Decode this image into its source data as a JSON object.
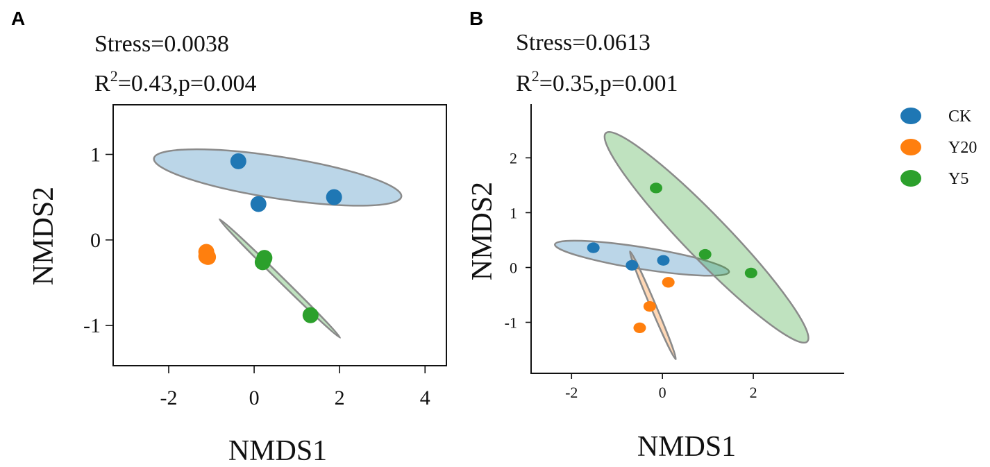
{
  "colors": {
    "CK": "#1f77b4",
    "Y20": "#ff7f0e",
    "Y5": "#2ca02c",
    "ellipse_stroke": "#8a8a8a"
  },
  "legend": [
    {
      "group": "CK",
      "label": "CK"
    },
    {
      "group": "Y20",
      "label": "Y20"
    },
    {
      "group": "Y5",
      "label": "Y5"
    }
  ],
  "chart_data": [
    {
      "type": "scatter",
      "panel": "A",
      "stress_text": "Stress=0.0038",
      "r2_prefix": "R",
      "r2_sup": "2",
      "r2_rest": "=0.43,p=0.004",
      "xlabel": "NMDS1",
      "ylabel": "NMDS2",
      "xlim": [
        -3.3,
        4.5
      ],
      "ylim": [
        -1.47,
        1.58
      ],
      "xticks": [
        -2,
        0,
        2,
        4
      ],
      "xtick_labels": [
        "-2",
        "0",
        "2",
        "4"
      ],
      "yticks": [
        1,
        0,
        -1
      ],
      "ytick_labels": [
        "1",
        "0",
        "-1"
      ],
      "series": [
        {
          "name": "CK",
          "points": [
            [
              -0.37,
              0.92
            ],
            [
              0.1,
              0.42
            ],
            [
              1.87,
              0.5
            ]
          ]
        },
        {
          "name": "Y20",
          "points": [
            [
              -1.12,
              -0.14
            ],
            [
              -1.12,
              -0.19
            ],
            [
              -1.08,
              -0.2
            ]
          ]
        },
        {
          "name": "Y5",
          "points": [
            [
              0.24,
              -0.21
            ],
            [
              0.2,
              -0.26
            ],
            [
              1.32,
              -0.88
            ]
          ]
        }
      ],
      "ellipses": [
        {
          "group": "CK",
          "center": [
            0.55,
            0.73
          ],
          "semi_axes": [
            2.93,
            0.49
          ],
          "angle_deg": -8.8
        },
        {
          "group": "Y5",
          "center": [
            0.6,
            -0.45
          ],
          "semi_axes": [
            1.98,
            0.06
          ],
          "angle_deg": -44.5
        }
      ]
    },
    {
      "type": "scatter",
      "panel": "B",
      "stress_text": "Stress=0.0613",
      "r2_prefix": "R",
      "r2_sup": "2",
      "r2_rest": "=0.35,p=0.001",
      "xlabel": "NMDS1",
      "ylabel": "NMDS2",
      "xlim": [
        -2.89,
        4.0
      ],
      "ylim": [
        -1.93,
        2.98
      ],
      "xticks": [
        -2,
        0,
        2
      ],
      "xtick_labels": [
        "-2",
        "0",
        "2"
      ],
      "yticks": [
        2,
        1,
        0,
        -1
      ],
      "ytick_labels": [
        "2",
        "1",
        "0",
        "-1"
      ],
      "series": [
        {
          "name": "CK",
          "points": [
            [
              -1.52,
              0.36
            ],
            [
              -0.67,
              0.04
            ],
            [
              0.02,
              0.13
            ]
          ]
        },
        {
          "name": "Y20",
          "points": [
            [
              0.13,
              -0.27
            ],
            [
              -0.28,
              -0.71
            ],
            [
              -0.5,
              -1.1
            ]
          ]
        },
        {
          "name": "Y5",
          "points": [
            [
              -0.14,
              1.45
            ],
            [
              0.94,
              0.24
            ],
            [
              1.95,
              -0.1
            ]
          ]
        }
      ],
      "ellipses": [
        {
          "group": "CK",
          "center": [
            -0.45,
            0.17
          ],
          "semi_axes": [
            1.94,
            0.24
          ],
          "angle_deg": -9
        },
        {
          "group": "Y5",
          "center": [
            0.97,
            0.55
          ],
          "semi_axes": [
            3.19,
            0.48
          ],
          "angle_deg": -46
        },
        {
          "group": "Y20",
          "center": [
            -0.21,
            -0.69
          ],
          "semi_axes": [
            1.29,
            0.06
          ],
          "angle_deg": -67
        }
      ]
    }
  ]
}
